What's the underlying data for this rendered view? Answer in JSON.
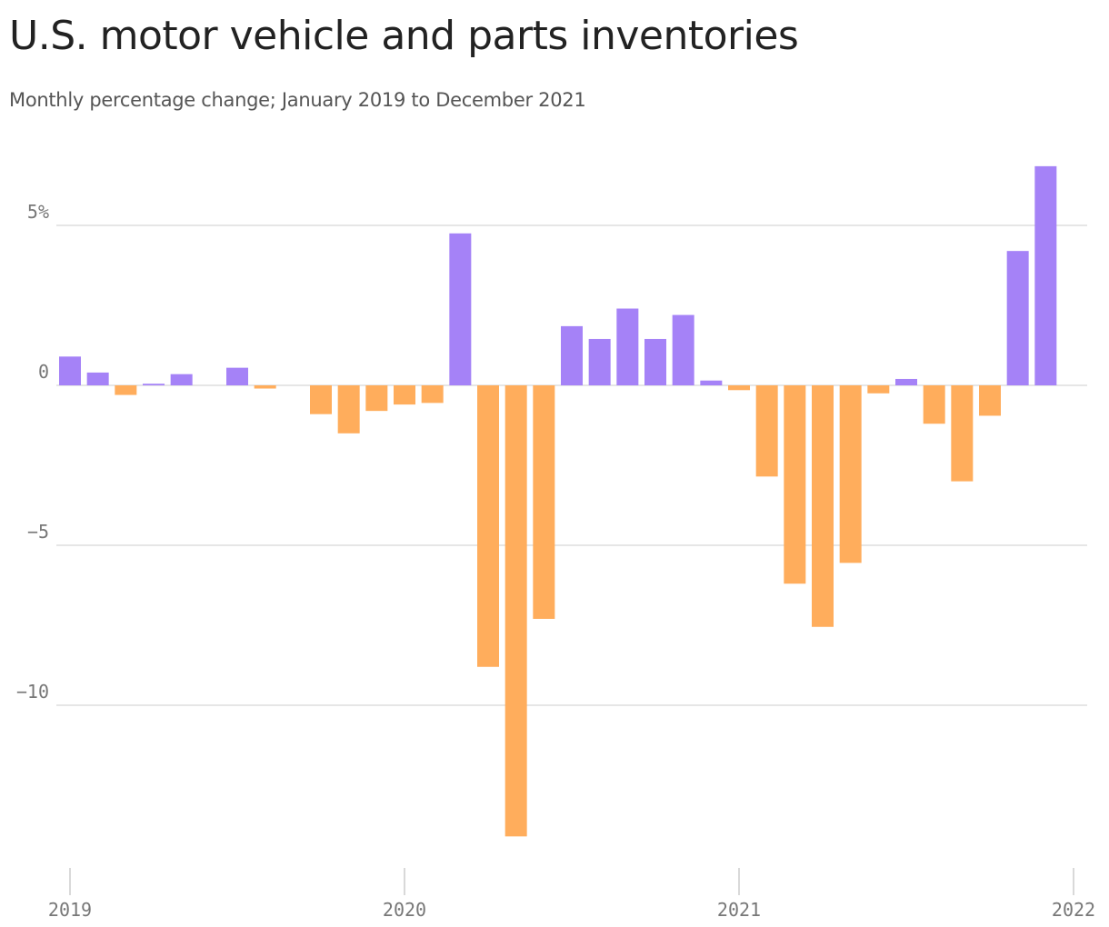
{
  "title": "U.S. motor vehicle and parts inventories",
  "subtitle": "Monthly percentage change; January 2019 to December 2021",
  "colors": {
    "positive": "#a582f7",
    "negative": "#ffad5c",
    "grid": "#dddddd",
    "axis": "#cccccc",
    "tick_text": "#777777"
  },
  "chart_data": {
    "type": "bar",
    "ylim": [
      -14.5,
      7.2
    ],
    "grid": true,
    "y_ticks": [
      {
        "value": 5,
        "label": "5%"
      },
      {
        "value": 0,
        "label": "0"
      },
      {
        "value": -5,
        "label": "−5"
      },
      {
        "value": -10,
        "label": "−10"
      }
    ],
    "x_ticks": [
      "2019",
      "2020",
      "2021",
      "2022"
    ],
    "categories": [
      "2019-01",
      "2019-02",
      "2019-03",
      "2019-04",
      "2019-05",
      "2019-06",
      "2019-07",
      "2019-08",
      "2019-09",
      "2019-10",
      "2019-11",
      "2019-12",
      "2020-01",
      "2020-02",
      "2020-03",
      "2020-04",
      "2020-05",
      "2020-06",
      "2020-07",
      "2020-08",
      "2020-09",
      "2020-10",
      "2020-11",
      "2020-12",
      "2021-01",
      "2021-02",
      "2021-03",
      "2021-04",
      "2021-05",
      "2021-06",
      "2021-07",
      "2021-08",
      "2021-09",
      "2021-10",
      "2021-11",
      "2021-12"
    ],
    "values": [
      0.9,
      0.4,
      -0.3,
      0.05,
      0.35,
      0.0,
      0.55,
      -0.1,
      0.0,
      -0.9,
      -1.5,
      -0.8,
      -0.6,
      -0.55,
      4.75,
      -8.8,
      -14.1,
      -7.3,
      1.85,
      1.45,
      2.4,
      1.45,
      2.2,
      0.15,
      -0.15,
      -2.85,
      -6.2,
      -7.55,
      -5.55,
      -0.25,
      0.2,
      -1.2,
      -3.0,
      -0.95,
      4.2,
      6.85
    ]
  }
}
